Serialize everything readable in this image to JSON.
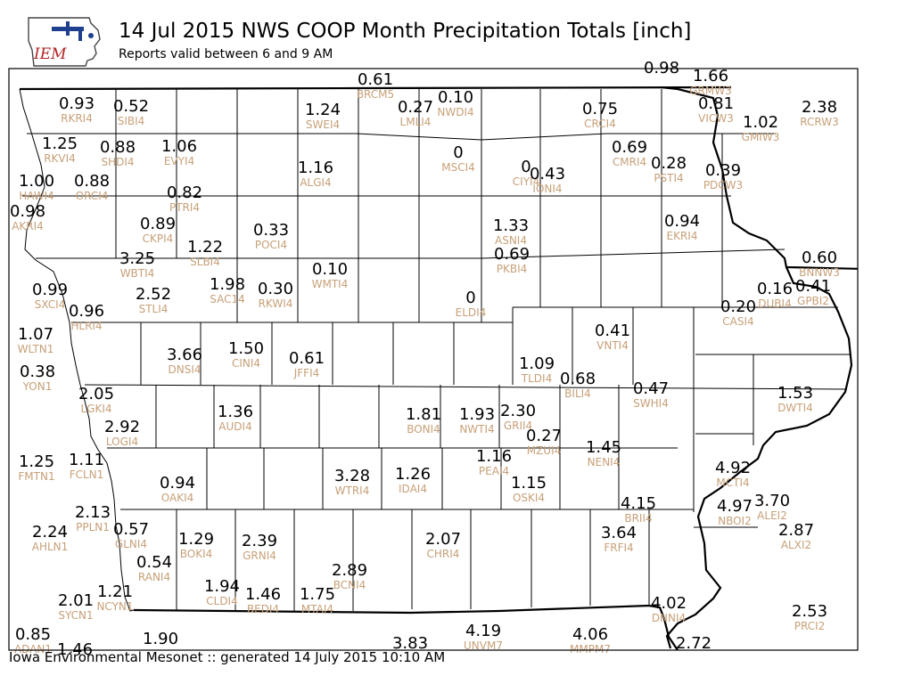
{
  "header": {
    "title": "14 Jul 2015 NWS COOP Month Precipitation Totals [inch]",
    "subtitle": "Reports valid between 6 and 9 AM",
    "logo_text": "IEM"
  },
  "footer": {
    "text": "Iowa Environmental Mesonet :: generated 14 July 2015 10:10 AM"
  },
  "colors": {
    "value": "#000000",
    "station_id": "#c7a078",
    "logo_red": "#b22222",
    "logo_blue": "#1f3f8f"
  },
  "stations": [
    {
      "id": "BRCM5",
      "value": "0.61"
    },
    {
      "id": "GRMW3",
      "value": "1.66"
    },
    {
      "id": "VICW3",
      "value": "0.81"
    },
    {
      "id": "GMIW3",
      "value": "1.02"
    },
    {
      "id": "RCRW3",
      "value": "2.38"
    },
    {
      "id": "RKRI4",
      "value": "0.93"
    },
    {
      "id": "SIBI4",
      "value": "0.52"
    },
    {
      "id": "SWEI4",
      "value": "1.24"
    },
    {
      "id": "LMLI4",
      "value": "0.27"
    },
    {
      "id": "NWDI4",
      "value": "0.10"
    },
    {
      "id": "CRCI4",
      "value": "0.75"
    },
    {
      "id": "RKVI4",
      "value": "1.25"
    },
    {
      "id": "SHDI4",
      "value": "0.88"
    },
    {
      "id": "EVYI4",
      "value": "1.06"
    },
    {
      "id": "MSCI4",
      "value": "0"
    },
    {
      "id": "CMRI4",
      "value": "0.69"
    },
    {
      "id": "PSTI4",
      "value": "0.28"
    },
    {
      "id": "PDCW3",
      "value": "0.39"
    },
    {
      "id": "ALGI4",
      "value": "1.16"
    },
    {
      "id": "CIYI4",
      "value": "0"
    },
    {
      "id": "IONI4",
      "value": "0.43"
    },
    {
      "id": "HAWI4",
      "value": "1.00"
    },
    {
      "id": "ORCI4",
      "value": "0.88"
    },
    {
      "id": "PTRI4",
      "value": "0.82"
    },
    {
      "id": "AKRI4",
      "value": "0.98"
    },
    {
      "id": "CKPI4",
      "value": "0.89"
    },
    {
      "id": "POCI4",
      "value": "0.33"
    },
    {
      "id": "ASNI4",
      "value": "1.33"
    },
    {
      "id": "EKRI4",
      "value": "0.94"
    },
    {
      "id": "SLBI4",
      "value": "1.22"
    },
    {
      "id": "WBTI4",
      "value": "3.25"
    },
    {
      "id": "PKBI4",
      "value": "0.69"
    },
    {
      "id": "BNNW3",
      "value": "0.60"
    },
    {
      "id": "SAC14",
      "value": "1.98"
    },
    {
      "id": "WMTI4",
      "value": "0.10"
    },
    {
      "id": "SXCI4",
      "value": "0.99"
    },
    {
      "id": "STLI4",
      "value": "2.52"
    },
    {
      "id": "RKWI4",
      "value": "0.30"
    },
    {
      "id": "DUBI4",
      "value": "0.16"
    },
    {
      "id": "GPBI2",
      "value": "0.41"
    },
    {
      "id": "ELDI4",
      "value": "0"
    },
    {
      "id": "CASI4",
      "value": "0.20"
    },
    {
      "id": "HLRI4",
      "value": "0.96"
    },
    {
      "id": "VNTI4",
      "value": "0.41"
    },
    {
      "id": "WLTN1",
      "value": "1.07"
    },
    {
      "id": "DNSI4",
      "value": "3.66"
    },
    {
      "id": "CINI4",
      "value": "1.50"
    },
    {
      "id": "JFFI4",
      "value": "0.61"
    },
    {
      "id": "TLDI4",
      "value": "1.09"
    },
    {
      "id": "YON1",
      "value": "0.38"
    },
    {
      "id": "BILI4",
      "value": "0.68"
    },
    {
      "id": "SWHI4",
      "value": "0.47"
    },
    {
      "id": "DWTI4",
      "value": "1.53"
    },
    {
      "id": "LGKI4",
      "value": "2.05"
    },
    {
      "id": "AUDI4",
      "value": "1.36"
    },
    {
      "id": "BONI4",
      "value": "1.81"
    },
    {
      "id": "NWTI4",
      "value": "1.93"
    },
    {
      "id": "GRII4",
      "value": "2.30"
    },
    {
      "id": "LOGI4",
      "value": "2.92"
    },
    {
      "id": "MZUI4",
      "value": "0.27"
    },
    {
      "id": "NENI4",
      "value": "1.45"
    },
    {
      "id": "PEAI4",
      "value": "1.16"
    },
    {
      "id": "FMTN1",
      "value": "1.25"
    },
    {
      "id": "FCLN1",
      "value": "1.11"
    },
    {
      "id": "WTRI4",
      "value": "3.28"
    },
    {
      "id": "IDAI4",
      "value": "1.26"
    },
    {
      "id": "OSKI4",
      "value": "1.15"
    },
    {
      "id": "MCTI4",
      "value": "4.92"
    },
    {
      "id": "OAKI4",
      "value": "0.94"
    },
    {
      "id": "BRII4",
      "value": "4.15"
    },
    {
      "id": "NBOI2",
      "value": "4.97"
    },
    {
      "id": "ALEI2",
      "value": "3.70"
    },
    {
      "id": "PPLN1",
      "value": "2.13"
    },
    {
      "id": "AHLN1",
      "value": "2.24"
    },
    {
      "id": "GLNI4",
      "value": "0.57"
    },
    {
      "id": "CHRI4",
      "value": "2.07"
    },
    {
      "id": "FRFI4",
      "value": "3.64"
    },
    {
      "id": "ALXI2",
      "value": "2.87"
    },
    {
      "id": "BOKI4",
      "value": "1.29"
    },
    {
      "id": "GRNI4",
      "value": "2.39"
    },
    {
      "id": "RANI4",
      "value": "0.54"
    },
    {
      "id": "BCNI4",
      "value": "2.89"
    },
    {
      "id": "CLDI4",
      "value": "1.94"
    },
    {
      "id": "BEDI4",
      "value": "1.46"
    },
    {
      "id": "MTAI4",
      "value": "1.75"
    },
    {
      "id": "NCYN1",
      "value": "1.21"
    },
    {
      "id": "SYCN1",
      "value": "2.01"
    },
    {
      "id": "DNNI4",
      "value": "4.02"
    },
    {
      "id": "PRCI2",
      "value": "2.53"
    },
    {
      "id": "ADAN1",
      "value": "0.85"
    },
    {
      "id": "UNVM7",
      "value": "4.19"
    },
    {
      "id": "MMPM7",
      "value": "4.06"
    }
  ],
  "unlabeled_values": [
    "0.98",
    "1.90",
    "3.83",
    "2.72",
    "1.46"
  ]
}
